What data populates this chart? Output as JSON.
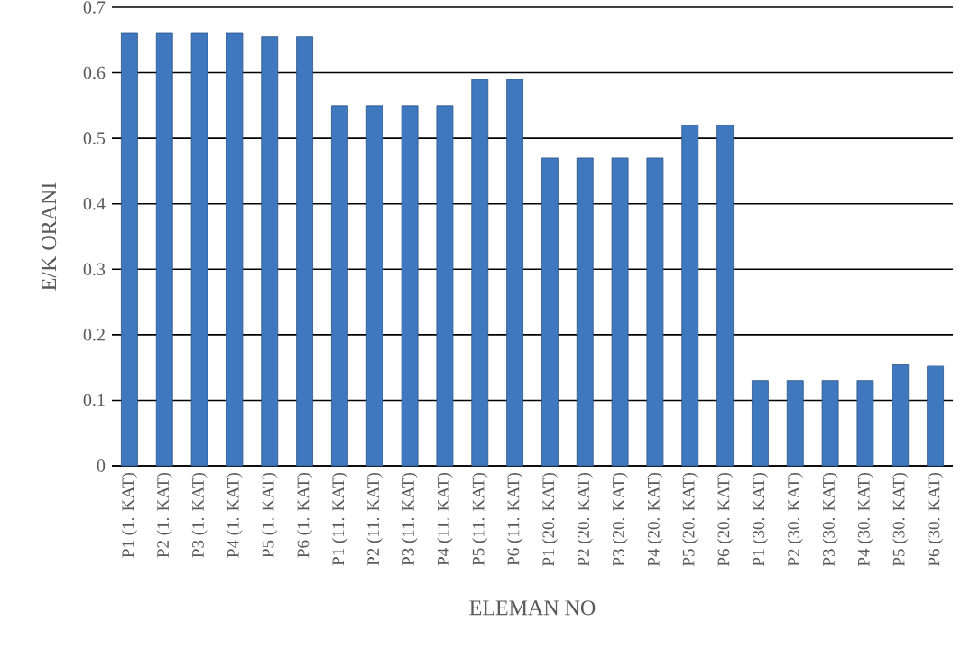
{
  "chart_data": {
    "type": "bar",
    "xlabel": "ELEMAN NO",
    "ylabel": "E/K ORANI",
    "categories": [
      "P1 (1. KAT)",
      "P2 (1. KAT)",
      "P3 (1. KAT)",
      "P4 (1. KAT)",
      "P5 (1. KAT)",
      "P6 (1. KAT)",
      "P1 (11. KAT)",
      "P2 (11. KAT)",
      "P3 (11. KAT)",
      "P4 (11. KAT)",
      "P5 (11. KAT)",
      "P6 (11. KAT)",
      "P1 (20. KAT)",
      "P2 (20. KAT)",
      "P3 (20. KAT)",
      "P4 (20. KAT)",
      "P5 (20. KAT)",
      "P6 (20. KAT)",
      "P1 (30. KAT)",
      "P2 (30. KAT)",
      "P3 (30. KAT)",
      "P4 (30. KAT)",
      "P5 (30. KAT)",
      "P6 (30. KAT)"
    ],
    "values": [
      0.66,
      0.66,
      0.66,
      0.66,
      0.655,
      0.655,
      0.55,
      0.55,
      0.55,
      0.55,
      0.59,
      0.59,
      0.47,
      0.47,
      0.47,
      0.47,
      0.52,
      0.52,
      0.13,
      0.13,
      0.13,
      0.13,
      0.155,
      0.153
    ],
    "color": "#3f78be",
    "ylim": [
      0,
      0.7
    ],
    "yticks": [
      0,
      0.1,
      0.2,
      0.3,
      0.4,
      0.5,
      0.6,
      0.7
    ],
    "grid": "y"
  }
}
